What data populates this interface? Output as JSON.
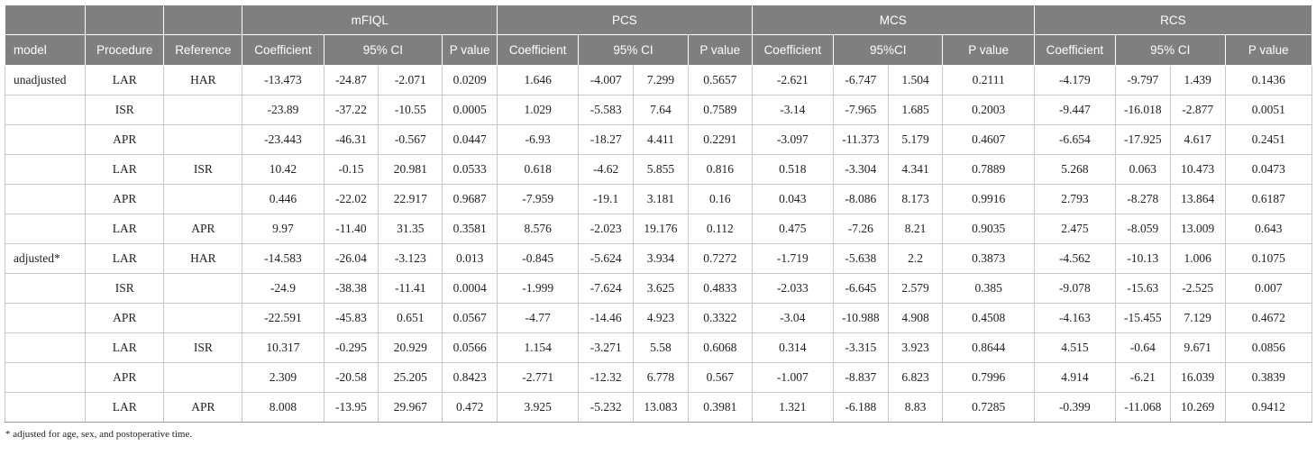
{
  "groups": [
    "mFIQL",
    "PCS",
    "MCS",
    "RCS"
  ],
  "subheaders": {
    "model": "model",
    "procedure": "Procedure",
    "reference": "Reference",
    "mfiql": [
      "Coefficient",
      "95% CI",
      "P value"
    ],
    "pcs": [
      "Coefficient",
      "95% CI",
      "P value"
    ],
    "mcs": [
      "Coefficient",
      "95%CI",
      "P value"
    ],
    "rcs": [
      "Coefficient",
      "95% CI",
      "P value"
    ]
  },
  "rows": [
    [
      "unadjusted",
      "LAR",
      "HAR",
      "-13.473",
      "-24.87",
      "-2.071",
      "0.0209",
      "1.646",
      "-4.007",
      "7.299",
      "0.5657",
      "-2.621",
      "-6.747",
      "1.504",
      "0.2111",
      "-4.179",
      "-9.797",
      "1.439",
      "0.1436"
    ],
    [
      "",
      "ISR",
      "",
      "-23.89",
      "-37.22",
      "-10.55",
      "0.0005",
      "1.029",
      "-5.583",
      "7.64",
      "0.7589",
      "-3.14",
      "-7.965",
      "1.685",
      "0.2003",
      "-9.447",
      "-16.018",
      "-2.877",
      "0.0051"
    ],
    [
      "",
      "APR",
      "",
      "-23.443",
      "-46.31",
      "-0.567",
      "0.0447",
      "-6.93",
      "-18.27",
      "4.411",
      "0.2291",
      "-3.097",
      "-11.373",
      "5.179",
      "0.4607",
      "-6.654",
      "-17.925",
      "4.617",
      "0.2451"
    ],
    [
      "",
      "LAR",
      "ISR",
      "10.42",
      "-0.15",
      "20.981",
      "0.0533",
      "0.618",
      "-4.62",
      "5.855",
      "0.816",
      "0.518",
      "-3.304",
      "4.341",
      "0.7889",
      "5.268",
      "0.063",
      "10.473",
      "0.0473"
    ],
    [
      "",
      "APR",
      "",
      "0.446",
      "-22.02",
      "22.917",
      "0.9687",
      "-7.959",
      "-19.1",
      "3.181",
      "0.16",
      "0.043",
      "-8.086",
      "8.173",
      "0.9916",
      "2.793",
      "-8.278",
      "13.864",
      "0.6187"
    ],
    [
      "",
      "LAR",
      "APR",
      "9.97",
      "-11.40",
      "31.35",
      "0.3581",
      "8.576",
      "-2.023",
      "19.176",
      "0.112",
      "0.475",
      "-7.26",
      "8.21",
      "0.9035",
      "2.475",
      "-8.059",
      "13.009",
      "0.643"
    ],
    [
      "adjusted*",
      "LAR",
      "HAR",
      "-14.583",
      "-26.04",
      "-3.123",
      "0.013",
      "-0.845",
      "-5.624",
      "3.934",
      "0.7272",
      "-1.719",
      "-5.638",
      "2.2",
      "0.3873",
      "-4.562",
      "-10.13",
      "1.006",
      "0.1075"
    ],
    [
      "",
      "ISR",
      "",
      "-24.9",
      "-38.38",
      "-11.41",
      "0.0004",
      "-1.999",
      "-7.624",
      "3.625",
      "0.4833",
      "-2.033",
      "-6.645",
      "2.579",
      "0.385",
      "-9.078",
      "-15.63",
      "-2.525",
      "0.007"
    ],
    [
      "",
      "APR",
      "",
      "-22.591",
      "-45.83",
      "0.651",
      "0.0567",
      "-4.77",
      "-14.46",
      "4.923",
      "0.3322",
      "-3.04",
      "-10.988",
      "4.908",
      "0.4508",
      "-4.163",
      "-15.455",
      "7.129",
      "0.4672"
    ],
    [
      "",
      "LAR",
      "ISR",
      "10.317",
      "-0.295",
      "20.929",
      "0.0566",
      "1.154",
      "-3.271",
      "5.58",
      "0.6068",
      "0.314",
      "-3.315",
      "3.923",
      "0.8644",
      "4.515",
      "-0.64",
      "9.671",
      "0.0856"
    ],
    [
      "",
      "APR",
      "",
      "2.309",
      "-20.58",
      "25.205",
      "0.8423",
      "-2.771",
      "-12.32",
      "6.778",
      "0.567",
      "-1.007",
      "-8.837",
      "6.823",
      "0.7996",
      "4.914",
      "-6.21",
      "16.039",
      "0.3839"
    ],
    [
      "",
      "LAR",
      "APR",
      "8.008",
      "-13.95",
      "29.967",
      "0.472",
      "3.925",
      "-5.232",
      "13.083",
      "0.3981",
      "1.321",
      "-6.188",
      "8.83",
      "0.7285",
      "-0.399",
      "-11.068",
      "10.269",
      "0.9412"
    ]
  ],
  "footnote": "* adjusted for age, sex, and postoperative time."
}
